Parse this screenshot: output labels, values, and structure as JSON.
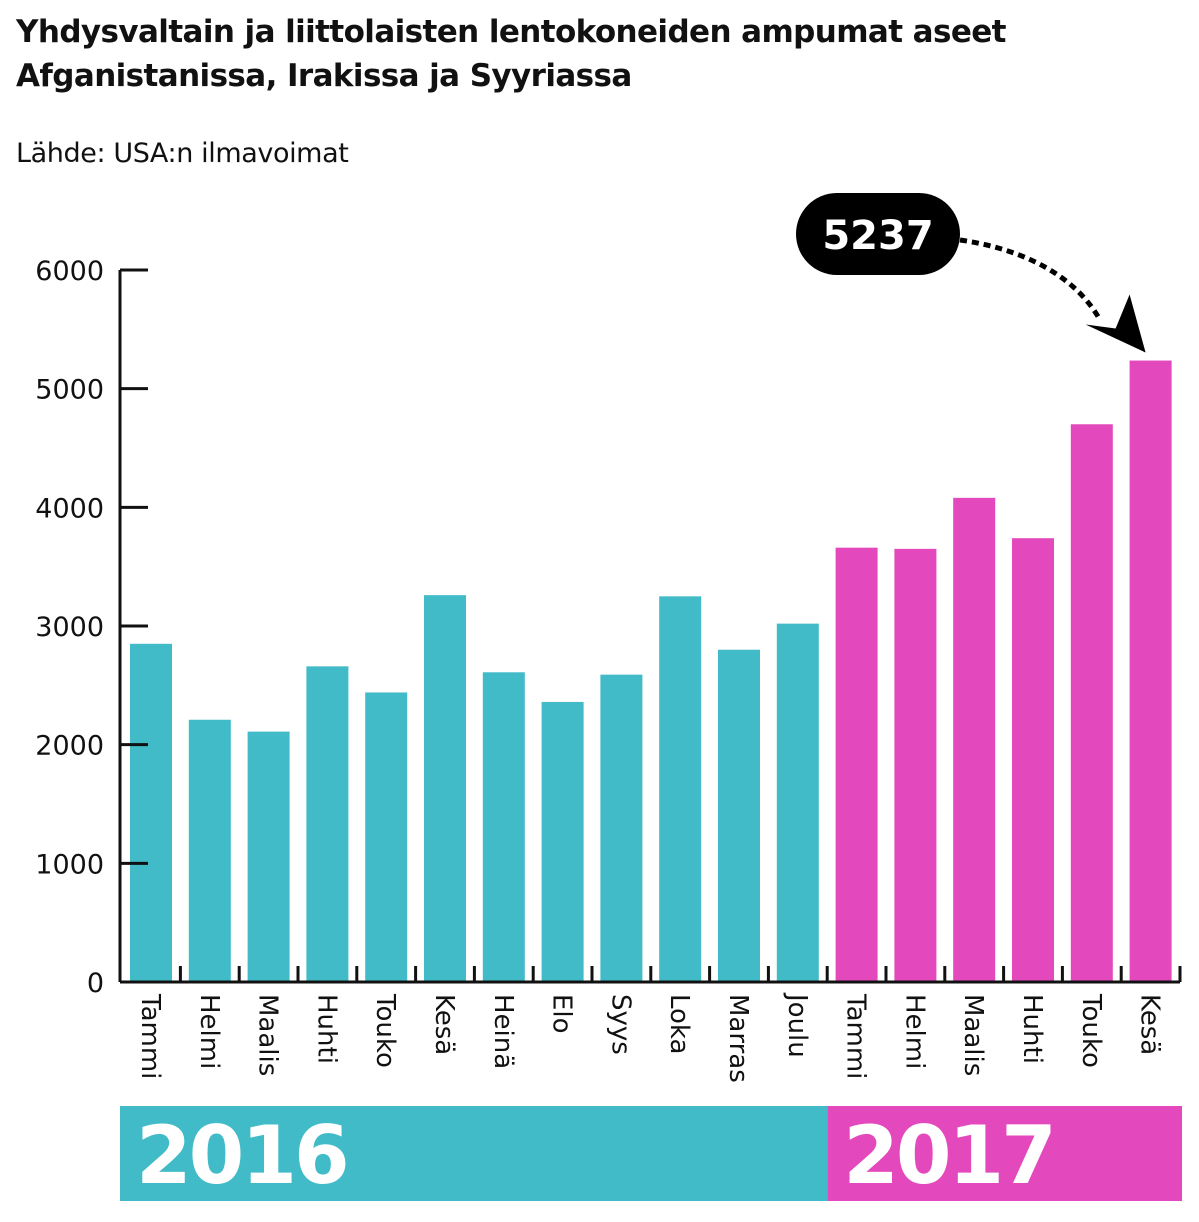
{
  "title_lines": [
    "Yhdysvaltain ja liittolaisten lentokoneiden ampumat aseet",
    "Afganistanissa, Irakissa ja Syyriassa"
  ],
  "source": "Lähde: USA:n ilmavoimat",
  "colors": {
    "2016": "#41bbc8",
    "2017": "#e349bd",
    "axis": "#111111",
    "callout_bg": "#000000"
  },
  "chart_data": {
    "type": "bar",
    "title": "Yhdysvaltain ja liittolaisten lentokoneiden ampumat aseet Afganistanissa, Irakissa ja Syyriassa",
    "xlabel": "",
    "ylabel": "",
    "ylim": [
      0,
      6000
    ],
    "yticks": [
      0,
      1000,
      2000,
      3000,
      4000,
      5000,
      6000
    ],
    "grid": false,
    "categories": [
      "Tammi",
      "Helmi",
      "Maalis",
      "Huhti",
      "Touko",
      "Kesä",
      "Heinä",
      "Elo",
      "Syys",
      "Loka",
      "Marras",
      "Joulu",
      "Tammi",
      "Helmi",
      "Maalis",
      "Huhti",
      "Touko",
      "Kesä"
    ],
    "values": [
      2850,
      2210,
      2110,
      2660,
      2440,
      3260,
      2610,
      2360,
      2590,
      3250,
      2800,
      3020,
      3660,
      3650,
      4080,
      3740,
      4700,
      5237
    ],
    "groups": [
      {
        "label": "2016",
        "start": 0,
        "count": 12
      },
      {
        "label": "2017",
        "start": 12,
        "count": 6
      }
    ],
    "annotation": {
      "text": "5237",
      "target_index": 17
    }
  }
}
